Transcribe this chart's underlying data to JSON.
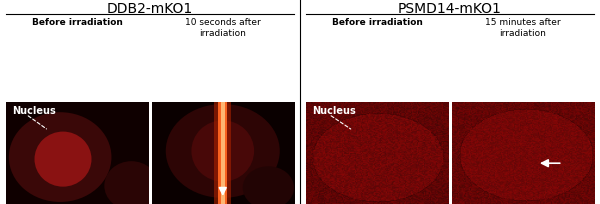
{
  "fig_width": 6.0,
  "fig_height": 2.04,
  "dpi": 100,
  "bg_color": "#ffffff",
  "group1_title": "DDB2-mKO1",
  "group2_title": "PSMD14-mKO1",
  "panel_labels": [
    "Before irradiation",
    "10 seconds after\nirradiation",
    "Before irradiation",
    "15 minutes after\nirradiation"
  ],
  "nucleus_label": "Nucleus",
  "text_color": "#000000",
  "group_fontsize": 10,
  "panel_label_fontsize": 6.5,
  "nucleus_fontsize": 7
}
